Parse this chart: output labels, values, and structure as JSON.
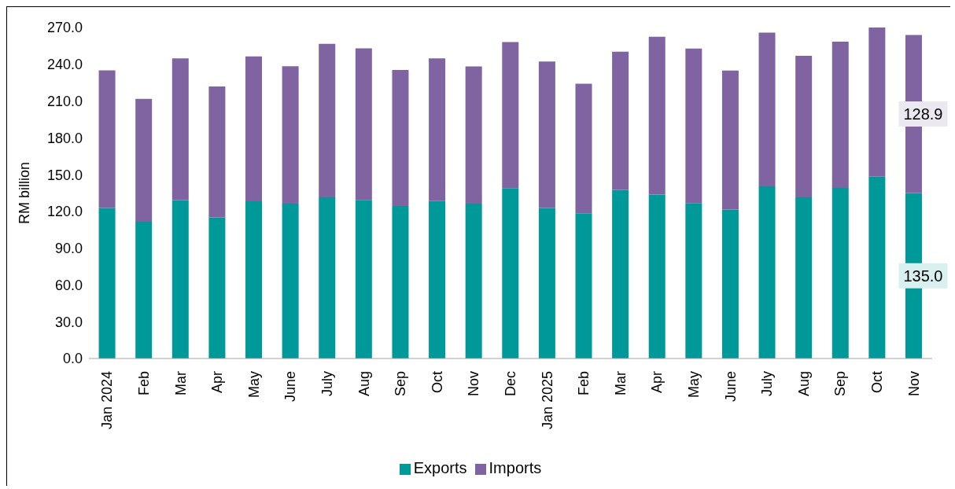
{
  "chart_data": {
    "type": "bar",
    "stacked": true,
    "ylabel": "RM billion",
    "categories": [
      "Jan 2024",
      "Feb",
      "Mar",
      "Apr",
      "May",
      "June",
      "July",
      "Aug",
      "Sep",
      "Oct",
      "Nov",
      "Dec",
      "Jan 2025",
      "Feb",
      "Mar",
      "Apr",
      "May",
      "June",
      "July",
      "Aug",
      "Sep",
      "Oct",
      "Nov"
    ],
    "series": [
      {
        "name": "Exports",
        "color": "#009999",
        "values": [
          122.8,
          111.6,
          129.2,
          115.1,
          128.3,
          126.4,
          131.4,
          129.4,
          124.4,
          128.5,
          126.4,
          139.0,
          122.8,
          118.5,
          137.5,
          133.7,
          126.9,
          121.6,
          140.4,
          131.5,
          139.2,
          148.3,
          135.0
        ],
        "value_labels": [
          null,
          null,
          null,
          null,
          null,
          null,
          null,
          null,
          null,
          null,
          null,
          null,
          null,
          null,
          null,
          null,
          null,
          null,
          null,
          null,
          null,
          null,
          "135.0"
        ]
      },
      {
        "name": "Imports",
        "color": "#8064a2",
        "values": [
          112.3,
          100.2,
          115.6,
          106.8,
          118.1,
          112.0,
          125.3,
          123.6,
          110.9,
          116.3,
          111.8,
          119.2,
          119.5,
          105.6,
          112.8,
          128.8,
          126.0,
          113.3,
          125.5,
          115.4,
          119.3,
          122.2,
          128.9
        ],
        "value_labels": [
          null,
          null,
          null,
          null,
          null,
          null,
          null,
          null,
          null,
          null,
          null,
          null,
          null,
          null,
          null,
          null,
          null,
          null,
          null,
          null,
          null,
          null,
          "128.9"
        ]
      }
    ],
    "ylim": [
      0,
      270
    ],
    "yticks": [
      {
        "value": 0,
        "label": "0.0"
      },
      {
        "value": 30,
        "label": "30.0"
      },
      {
        "value": 60,
        "label": "60.0"
      },
      {
        "value": 90,
        "label": "90.0"
      },
      {
        "value": 120,
        "label": "120.0"
      },
      {
        "value": 150,
        "label": "150.0"
      },
      {
        "value": 180,
        "label": "180.0"
      },
      {
        "value": 210,
        "label": "210.0"
      },
      {
        "value": 240,
        "label": "240.0"
      },
      {
        "value": 270,
        "label": "270.0"
      }
    ],
    "grid": false,
    "legend": "bottom"
  }
}
